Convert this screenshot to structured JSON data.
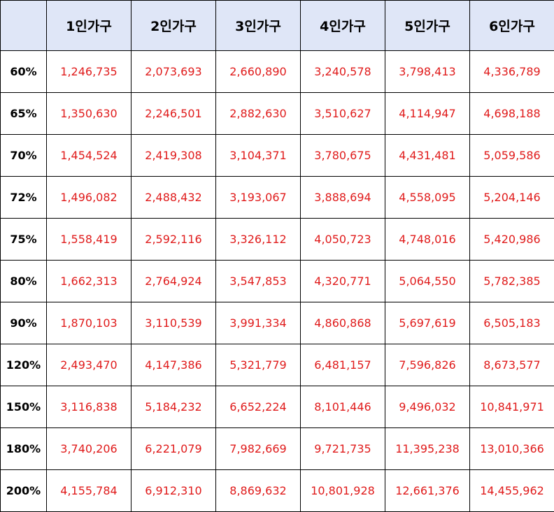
{
  "table": {
    "corner": "",
    "columns": [
      "1인가구",
      "2인가구",
      "3인가구",
      "4인가구",
      "5인가구",
      "6인가구"
    ],
    "rows": [
      {
        "label": "60%",
        "values": [
          "1,246,735",
          "2,073,693",
          "2,660,890",
          "3,240,578",
          "3,798,413",
          "4,336,789"
        ]
      },
      {
        "label": "65%",
        "values": [
          "1,350,630",
          "2,246,501",
          "2,882,630",
          "3,510,627",
          "4,114,947",
          "4,698,188"
        ]
      },
      {
        "label": "70%",
        "values": [
          "1,454,524",
          "2,419,308",
          "3,104,371",
          "3,780,675",
          "4,431,481",
          "5,059,586"
        ]
      },
      {
        "label": "72%",
        "values": [
          "1,496,082",
          "2,488,432",
          "3,193,067",
          "3,888,694",
          "4,558,095",
          "5,204,146"
        ]
      },
      {
        "label": "75%",
        "values": [
          "1,558,419",
          "2,592,116",
          "3,326,112",
          "4,050,723",
          "4,748,016",
          "5,420,986"
        ]
      },
      {
        "label": "80%",
        "values": [
          "1,662,313",
          "2,764,924",
          "3,547,853",
          "4,320,771",
          "5,064,550",
          "5,782,385"
        ]
      },
      {
        "label": "90%",
        "values": [
          "1,870,103",
          "3,110,539",
          "3,991,334",
          "4,860,868",
          "5,697,619",
          "6,505,183"
        ]
      },
      {
        "label": "120%",
        "values": [
          "2,493,470",
          "4,147,386",
          "5,321,779",
          "6,481,157",
          "7,596,826",
          "8,673,577"
        ]
      },
      {
        "label": "150%",
        "values": [
          "3,116,838",
          "5,184,232",
          "6,652,224",
          "8,101,446",
          "9,496,032",
          "10,841,971"
        ]
      },
      {
        "label": "180%",
        "values": [
          "3,740,206",
          "6,221,079",
          "7,982,669",
          "9,721,735",
          "11,395,238",
          "13,010,366"
        ]
      },
      {
        "label": "200%",
        "values": [
          "4,155,784",
          "6,912,310",
          "8,869,632",
          "10,801,928",
          "12,661,376",
          "14,455,962"
        ]
      }
    ]
  },
  "colors": {
    "header_background": "#dfe6f7",
    "value_text": "#e01b1b",
    "border": "#000000"
  }
}
